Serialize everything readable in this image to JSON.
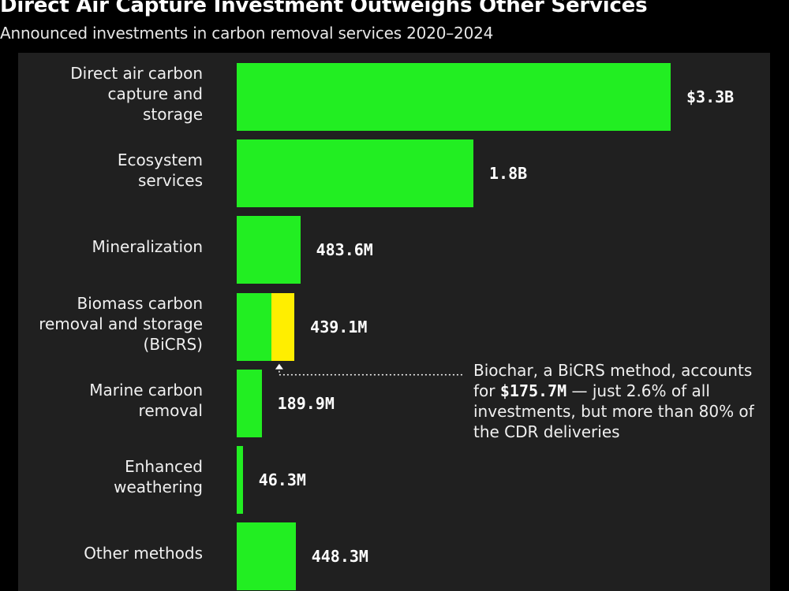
{
  "header": {
    "title": "Direct Air Capture Investment Outweighs Other Services",
    "subtitle": "Announced investments in carbon removal services 2020–2024"
  },
  "colors": {
    "bar": "#22ee22",
    "highlight": "#ffee00",
    "panel": "#202020",
    "background": "#000000"
  },
  "chart_data": {
    "type": "bar",
    "orientation": "horizontal",
    "title": "Direct Air Capture Investment Outweighs Other Services",
    "subtitle": "Announced investments in carbon removal services 2020–2024",
    "categories": [
      "Direct air carbon capture and storage",
      "Ecosystem services",
      "Mineralization",
      "Biomass carbon removal and storage (BiCRS)",
      "Marine carbon removal",
      "Enhanced weathering",
      "Other methods"
    ],
    "values": [
      3300,
      1800,
      483.6,
      439.1,
      189.9,
      46.3,
      448.3
    ],
    "value_labels": [
      "$3.3B",
      "1.8B",
      "483.6M",
      "439.1M",
      "189.9M",
      "46.3M",
      "448.3M"
    ],
    "unit": "USD millions",
    "highlight": {
      "category": "Biomass carbon removal and storage (BiCRS)",
      "value": 175.7
    },
    "annotation": {
      "before": "Biochar, a BiCRS method, accounts for ",
      "value": "$175.7M",
      "after": " — just 2.6% of all investments, but more than 80% of the CDR deliveries"
    },
    "xlim": [
      0,
      3300
    ],
    "grid": false,
    "legend": "none"
  }
}
